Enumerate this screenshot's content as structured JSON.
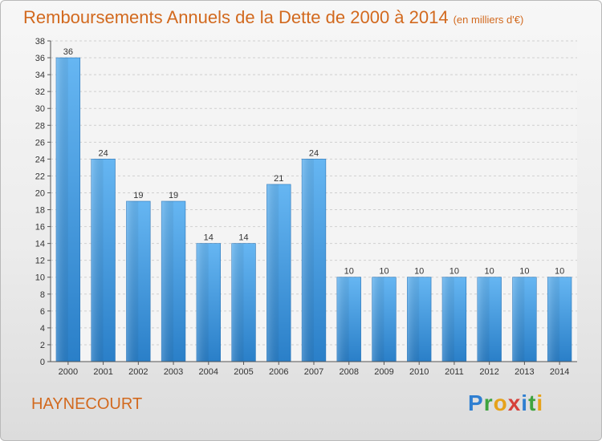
{
  "chart_data": {
    "type": "bar",
    "title": "Remboursements Annuels de la Dette de 2000 à 2014",
    "subtitle": "(en milliers d'€)",
    "categories": [
      "2000",
      "2001",
      "2002",
      "2003",
      "2004",
      "2005",
      "2006",
      "2007",
      "2008",
      "2009",
      "2010",
      "2011",
      "2012",
      "2013",
      "2014"
    ],
    "values": [
      36,
      24,
      19,
      19,
      14,
      14,
      21,
      24,
      10,
      10,
      10,
      10,
      10,
      10,
      10
    ],
    "ylim": [
      0,
      38
    ],
    "yticks": [
      0,
      2,
      4,
      6,
      8,
      10,
      12,
      14,
      16,
      18,
      20,
      22,
      24,
      26,
      28,
      30,
      32,
      34,
      36,
      38
    ],
    "grid": true,
    "bar_color": "#2e8fde"
  },
  "commune": "HAYNECOURT",
  "logo": {
    "letters": [
      {
        "ch": "P",
        "color": "#2f7fd1"
      },
      {
        "ch": "r",
        "color": "#3ea33e"
      },
      {
        "ch": "o",
        "color": "#e6a21a"
      },
      {
        "ch": "x",
        "color": "#d6403a"
      },
      {
        "ch": "i",
        "color": "#2f7fd1"
      },
      {
        "ch": "t",
        "color": "#3ea33e"
      },
      {
        "ch": "i",
        "color": "#e6a21a"
      }
    ]
  }
}
